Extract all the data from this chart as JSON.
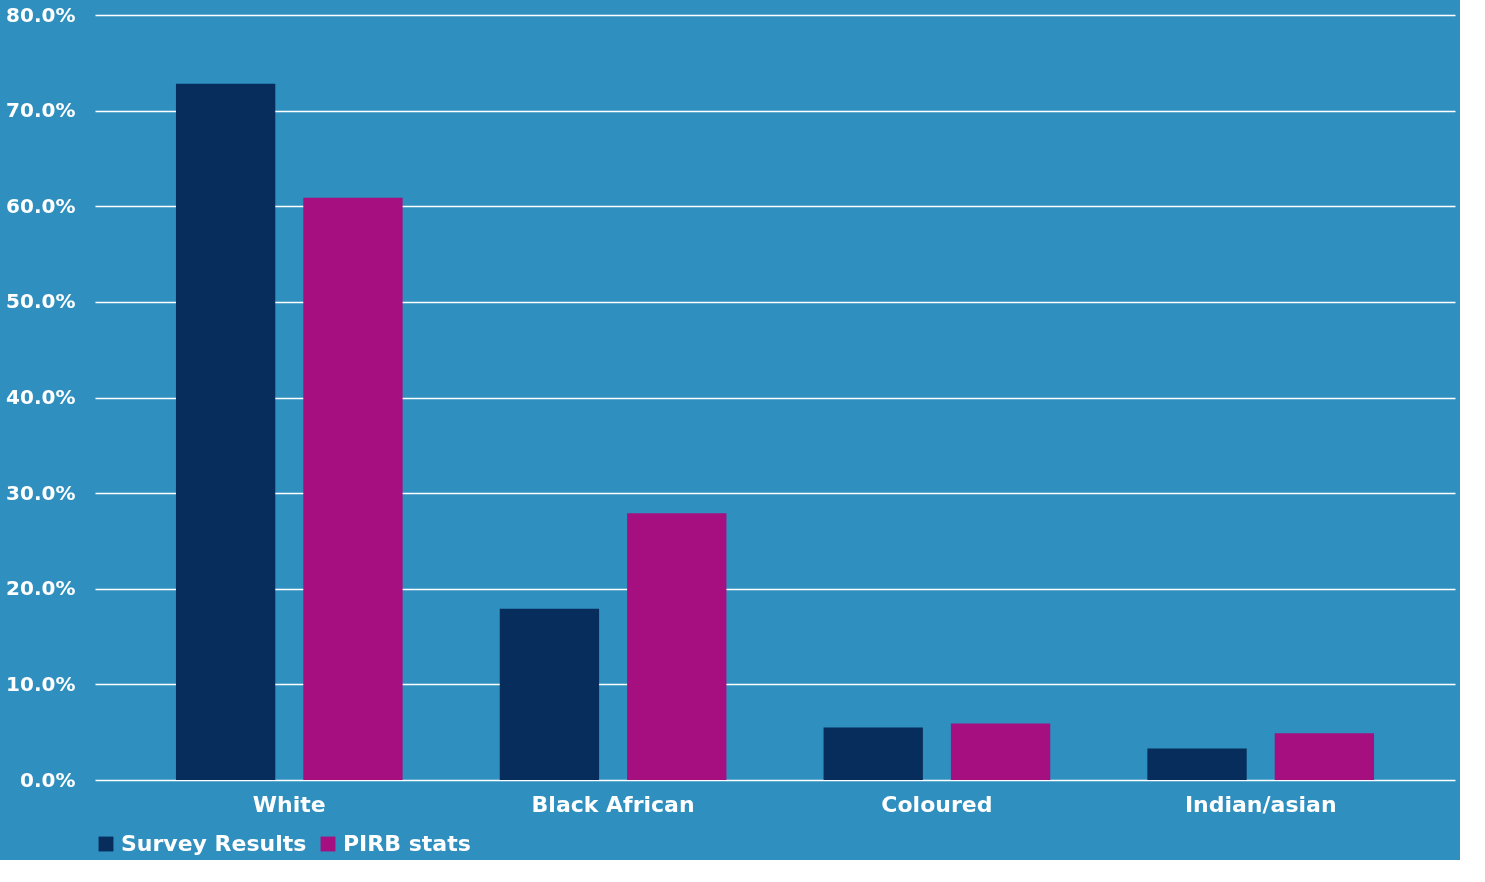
{
  "chart_data": {
    "type": "bar",
    "categories": [
      "White",
      "Black African",
      "Coloured",
      "Indian/asian"
    ],
    "series": [
      {
        "name": "Survey Results",
        "color": "#062d5c",
        "values": [
          72.8,
          17.9,
          5.5,
          3.3
        ]
      },
      {
        "name": "PIRB stats",
        "color": "#a50f80",
        "values": [
          60.9,
          27.9,
          5.9,
          4.9
        ]
      }
    ],
    "ylim": [
      0,
      80
    ],
    "yticks": [
      {
        "value": 0,
        "label": "0.0%"
      },
      {
        "value": 10,
        "label": "10.0%"
      },
      {
        "value": 20,
        "label": "20.0%"
      },
      {
        "value": 30,
        "label": "30.0%"
      },
      {
        "value": 40,
        "label": "40.0%"
      },
      {
        "value": 50,
        "label": "50.0%"
      },
      {
        "value": 60,
        "label": "60.0%"
      },
      {
        "value": 70,
        "label": "70.0%"
      },
      {
        "value": 80,
        "label": "80.0%"
      }
    ],
    "grid": "y",
    "legend": "bottom"
  }
}
